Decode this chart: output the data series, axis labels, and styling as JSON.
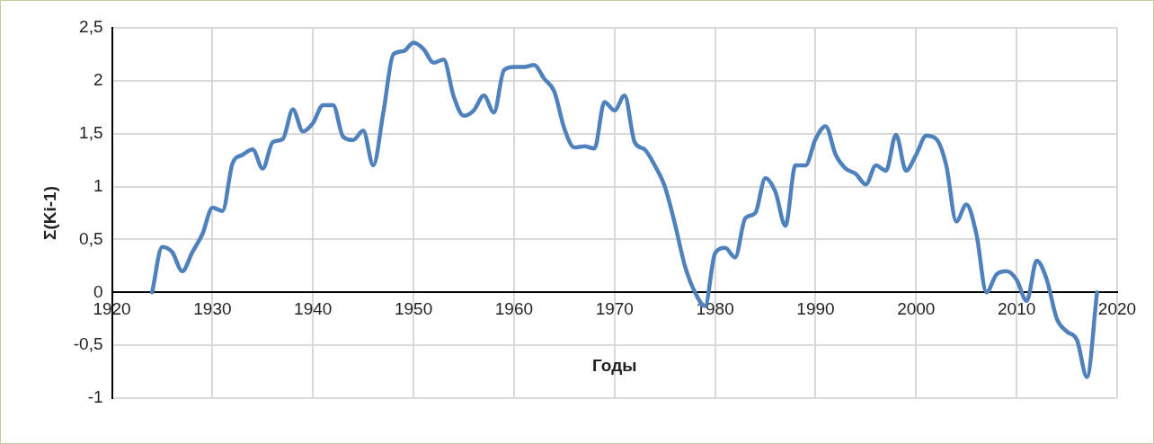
{
  "chart_data": {
    "type": "line",
    "xlabel": "Годы",
    "ylabel": "Σ(Ki-1)",
    "x": [
      1924,
      1925,
      1926,
      1927,
      1928,
      1929,
      1930,
      1931,
      1932,
      1933,
      1934,
      1935,
      1936,
      1937,
      1938,
      1939,
      1940,
      1941,
      1942,
      1943,
      1944,
      1945,
      1946,
      1947,
      1948,
      1949,
      1950,
      1951,
      1952,
      1953,
      1954,
      1955,
      1956,
      1957,
      1958,
      1959,
      1960,
      1961,
      1962,
      1963,
      1964,
      1965,
      1966,
      1967,
      1968,
      1969,
      1970,
      1971,
      1972,
      1973,
      1974,
      1975,
      1976,
      1977,
      1978,
      1979,
      1980,
      1981,
      1982,
      1983,
      1984,
      1985,
      1986,
      1987,
      1988,
      1989,
      1990,
      1991,
      1992,
      1993,
      1994,
      1995,
      1996,
      1997,
      1998,
      1999,
      2000,
      2001,
      2002,
      2003,
      2004,
      2005,
      2006,
      2007,
      2008,
      2009,
      2010,
      2011,
      2012,
      2013,
      2014,
      2015,
      2016,
      2017,
      2018
    ],
    "series": [
      {
        "color": "#4f81bd",
        "values": [
          0,
          0.43,
          0.38,
          0.2,
          0.38,
          0.55,
          0.8,
          0.77,
          1.22,
          1.3,
          1.35,
          1.17,
          1.42,
          1.45,
          1.73,
          1.52,
          1.6,
          1.77,
          1.77,
          1.47,
          1.44,
          1.53,
          1.2,
          1.7,
          2.25,
          2.28,
          2.36,
          2.3,
          2.17,
          2.2,
          1.85,
          1.67,
          1.72,
          1.86,
          1.7,
          2.1,
          2.13,
          2.13,
          2.15,
          2.02,
          1.9,
          1.55,
          1.37,
          1.38,
          1.36,
          1.8,
          1.72,
          1.86,
          1.42,
          1.35,
          1.2,
          1.0,
          0.65,
          0.25,
          0,
          -0.13,
          0.37,
          0.42,
          0.33,
          0.7,
          0.75,
          1.08,
          0.95,
          0.63,
          1.2,
          1.2,
          1.45,
          1.57,
          1.3,
          1.17,
          1.12,
          1.02,
          1.2,
          1.15,
          1.49,
          1.15,
          1.3,
          1.48,
          1.45,
          1.2,
          0.67,
          0.83,
          0.55,
          0,
          0.17,
          0.2,
          0.12,
          -0.08,
          0.3,
          0.12,
          -0.25,
          -0.37,
          -0.45,
          -0.8,
          0
        ]
      }
    ],
    "xlim": [
      1920,
      2020
    ],
    "xticks": [
      1920,
      1930,
      1940,
      1950,
      1960,
      1970,
      1980,
      1990,
      2000,
      2010,
      2020
    ],
    "ylim": [
      -1,
      2.5
    ],
    "yticks": [
      -1,
      {
        "value": -0.5,
        "label": "-0,5"
      },
      0,
      {
        "value": 0.5,
        "label": "0,5"
      },
      1,
      {
        "value": 1.5,
        "label": "1,5"
      },
      2,
      {
        "value": 2.5,
        "label": "2,5"
      }
    ],
    "grid": true,
    "legend": false,
    "marker": "none",
    "line_style": "solid"
  }
}
